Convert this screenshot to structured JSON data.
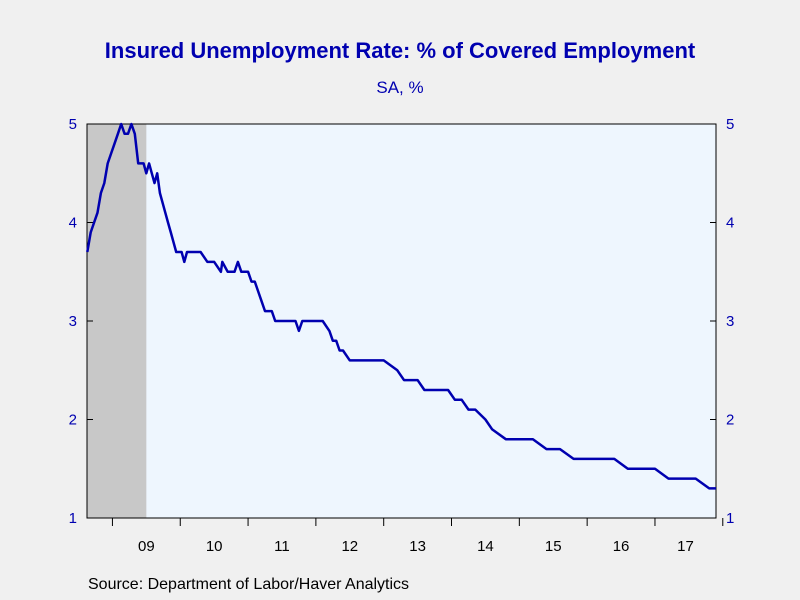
{
  "chart_data": {
    "type": "line",
    "title": "Insured Unemployment Rate: % of Covered Employment",
    "subtitle": "SA, %",
    "xlabel": "",
    "ylabel": "",
    "ylim": [
      1,
      5
    ],
    "yticks": [
      "1",
      "2",
      "3",
      "4",
      "5"
    ],
    "xtick_labels": [
      "09",
      "10",
      "11",
      "12",
      "13",
      "14",
      "15",
      "16",
      "17"
    ],
    "x_range_years": [
      2008.625,
      2017.9
    ],
    "recession_shading": {
      "start": 2008.625,
      "end": 2009.5,
      "color": "#c8c8c8"
    },
    "plot_background": "#eef6fe",
    "line_color": "#0000b0",
    "grid": false,
    "series": [
      {
        "values_x": [
          2008.63,
          2008.68,
          2008.73,
          2008.78,
          2008.83,
          2008.88,
          2008.93,
          2008.98,
          2009.03,
          2009.08,
          2009.13,
          2009.18,
          2009.23,
          2009.28,
          2009.33,
          2009.38,
          2009.42,
          2009.46,
          2009.5,
          2009.54,
          2009.58,
          2009.62,
          2009.66,
          2009.7,
          2009.74,
          2009.78,
          2009.82,
          2009.86,
          2009.9,
          2009.94,
          2009.98,
          2010.02,
          2010.06,
          2010.1,
          2010.14,
          2010.2,
          2010.3,
          2010.4,
          2010.5,
          2010.6,
          2010.62,
          2010.7,
          2010.8,
          2010.85,
          2010.9,
          2010.95,
          2011.0,
          2011.05,
          2011.1,
          2011.15,
          2011.2,
          2011.25,
          2011.3,
          2011.35,
          2011.4,
          2011.5,
          2011.6,
          2011.65,
          2011.7,
          2011.75,
          2011.8,
          2011.9,
          2012.0,
          2012.1,
          2012.2,
          2012.25,
          2012.3,
          2012.35,
          2012.4,
          2012.5,
          2012.6,
          2012.8,
          2013.0,
          2013.2,
          2013.3,
          2013.4,
          2013.5,
          2013.6,
          2013.8,
          2013.95,
          2014.05,
          2014.15,
          2014.25,
          2014.35,
          2014.5,
          2014.6,
          2014.8,
          2015.0,
          2015.2,
          2015.4,
          2015.6,
          2015.8,
          2016.0,
          2016.2,
          2016.4,
          2016.6,
          2016.8,
          2017.0,
          2017.2,
          2017.4,
          2017.6,
          2017.8,
          2017.9
        ],
        "values_y": [
          3.7,
          3.9,
          4.0,
          4.1,
          4.3,
          4.4,
          4.6,
          4.7,
          4.8,
          4.9,
          5.0,
          4.9,
          4.9,
          5.0,
          4.9,
          4.6,
          4.6,
          4.6,
          4.5,
          4.6,
          4.5,
          4.4,
          4.5,
          4.3,
          4.2,
          4.1,
          4.0,
          3.9,
          3.8,
          3.7,
          3.7,
          3.7,
          3.6,
          3.7,
          3.7,
          3.7,
          3.7,
          3.6,
          3.6,
          3.5,
          3.6,
          3.5,
          3.5,
          3.6,
          3.5,
          3.5,
          3.5,
          3.4,
          3.4,
          3.3,
          3.2,
          3.1,
          3.1,
          3.1,
          3.0,
          3.0,
          3.0,
          3.0,
          3.0,
          2.9,
          3.0,
          3.0,
          3.0,
          3.0,
          2.9,
          2.8,
          2.8,
          2.7,
          2.7,
          2.6,
          2.6,
          2.6,
          2.6,
          2.5,
          2.4,
          2.4,
          2.4,
          2.3,
          2.3,
          2.3,
          2.2,
          2.2,
          2.1,
          2.1,
          2.0,
          1.9,
          1.8,
          1.8,
          1.8,
          1.7,
          1.7,
          1.6,
          1.6,
          1.6,
          1.6,
          1.5,
          1.5,
          1.5,
          1.4,
          1.4,
          1.4,
          1.3,
          1.3
        ]
      }
    ]
  },
  "source": "Source:  Department of Labor/Haver Analytics"
}
